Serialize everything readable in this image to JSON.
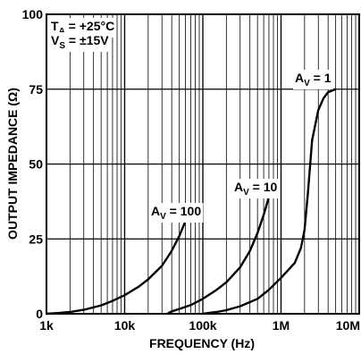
{
  "chart_data": {
    "type": "line",
    "xlabel": "FREQUENCY (Hz)",
    "ylabel": "OUTPUT IMPEDANCE (Ω)",
    "x_scale": "log",
    "xlim": [
      1000,
      10000000
    ],
    "ylim": [
      0,
      100
    ],
    "x_ticks": [
      1000,
      10000,
      100000,
      1000000,
      10000000
    ],
    "x_tick_labels": [
      "1k",
      "10k",
      "100k",
      "1M",
      "10M"
    ],
    "y_ticks": [
      0,
      25,
      50,
      75,
      100
    ],
    "y_tick_labels": [
      "0",
      "25",
      "50",
      "75",
      "100"
    ],
    "grid": true,
    "conditions": [
      {
        "main": "T",
        "sub": "A",
        "rest": " = +25°C"
      },
      {
        "main": "V",
        "sub": "S",
        "rest": " = ±15V"
      }
    ],
    "series": [
      {
        "name": "AV = 100",
        "label_main": "A",
        "label_sub": "V",
        "label_rest": " = 100",
        "points": [
          [
            1000,
            0
          ],
          [
            1500,
            0.3
          ],
          [
            2000,
            0.6
          ],
          [
            3000,
            1.3
          ],
          [
            5000,
            2.8
          ],
          [
            7000,
            4.3
          ],
          [
            10000,
            6.2
          ],
          [
            15000,
            9
          ],
          [
            20000,
            11.5
          ],
          [
            30000,
            16
          ],
          [
            40000,
            21
          ],
          [
            50000,
            26
          ],
          [
            60000,
            31
          ]
        ]
      },
      {
        "name": "AV = 10",
        "label_main": "A",
        "label_sub": "V",
        "label_rest": " = 10",
        "points": [
          [
            35000,
            0
          ],
          [
            40000,
            0.8
          ],
          [
            50000,
            1.6
          ],
          [
            70000,
            2.9
          ],
          [
            100000,
            5
          ],
          [
            150000,
            8
          ],
          [
            200000,
            10.5
          ],
          [
            300000,
            15.5
          ],
          [
            400000,
            21
          ],
          [
            500000,
            27
          ],
          [
            600000,
            33
          ],
          [
            700000,
            39
          ]
        ]
      },
      {
        "name": "AV = 1",
        "label_main": "A",
        "label_sub": "V",
        "label_rest": " = 1",
        "points": [
          [
            100000,
            0
          ],
          [
            150000,
            0.6
          ],
          [
            200000,
            1.2
          ],
          [
            300000,
            2.5
          ],
          [
            500000,
            5
          ],
          [
            700000,
            8
          ],
          [
            1000000,
            12
          ],
          [
            1500000,
            17
          ],
          [
            1800000,
            22
          ],
          [
            2000000,
            28
          ],
          [
            2200000,
            40
          ],
          [
            2500000,
            58
          ],
          [
            3000000,
            68
          ],
          [
            3500000,
            72
          ],
          [
            4000000,
            74
          ],
          [
            5000000,
            75
          ]
        ]
      }
    ]
  }
}
